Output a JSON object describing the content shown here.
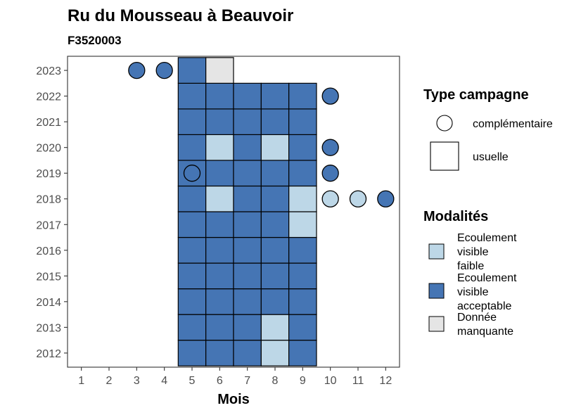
{
  "chart_data": {
    "type": "heatmap",
    "title": "Ru du Mousseau à Beauvoir",
    "subtitle": "F3520003",
    "xlabel": "Mois",
    "ylabel": "",
    "x_ticks": [
      1,
      2,
      3,
      4,
      5,
      6,
      7,
      8,
      9,
      10,
      11,
      12
    ],
    "y_ticks": [
      2012,
      2013,
      2014,
      2015,
      2016,
      2017,
      2018,
      2019,
      2020,
      2021,
      2022,
      2023
    ],
    "xlim": [
      0.5,
      12.5
    ],
    "ylim": [
      2011.45,
      2023.55
    ],
    "colors": {
      "faible": "#bdd7e7",
      "acceptable": "#4575b4",
      "manquante": "#e5e5e5"
    },
    "usuelle": [
      {
        "year": 2012,
        "month": 5,
        "modalite": "acceptable"
      },
      {
        "year": 2012,
        "month": 6,
        "modalite": "acceptable"
      },
      {
        "year": 2012,
        "month": 7,
        "modalite": "acceptable"
      },
      {
        "year": 2012,
        "month": 8,
        "modalite": "faible"
      },
      {
        "year": 2012,
        "month": 9,
        "modalite": "acceptable"
      },
      {
        "year": 2013,
        "month": 5,
        "modalite": "acceptable"
      },
      {
        "year": 2013,
        "month": 6,
        "modalite": "acceptable"
      },
      {
        "year": 2013,
        "month": 7,
        "modalite": "acceptable"
      },
      {
        "year": 2013,
        "month": 8,
        "modalite": "faible"
      },
      {
        "year": 2013,
        "month": 9,
        "modalite": "acceptable"
      },
      {
        "year": 2014,
        "month": 5,
        "modalite": "acceptable"
      },
      {
        "year": 2014,
        "month": 6,
        "modalite": "acceptable"
      },
      {
        "year": 2014,
        "month": 7,
        "modalite": "acceptable"
      },
      {
        "year": 2014,
        "month": 8,
        "modalite": "acceptable"
      },
      {
        "year": 2014,
        "month": 9,
        "modalite": "acceptable"
      },
      {
        "year": 2015,
        "month": 5,
        "modalite": "acceptable"
      },
      {
        "year": 2015,
        "month": 6,
        "modalite": "acceptable"
      },
      {
        "year": 2015,
        "month": 7,
        "modalite": "acceptable"
      },
      {
        "year": 2015,
        "month": 8,
        "modalite": "acceptable"
      },
      {
        "year": 2015,
        "month": 9,
        "modalite": "acceptable"
      },
      {
        "year": 2016,
        "month": 5,
        "modalite": "acceptable"
      },
      {
        "year": 2016,
        "month": 6,
        "modalite": "acceptable"
      },
      {
        "year": 2016,
        "month": 7,
        "modalite": "acceptable"
      },
      {
        "year": 2016,
        "month": 8,
        "modalite": "acceptable"
      },
      {
        "year": 2016,
        "month": 9,
        "modalite": "acceptable"
      },
      {
        "year": 2017,
        "month": 5,
        "modalite": "acceptable"
      },
      {
        "year": 2017,
        "month": 6,
        "modalite": "acceptable"
      },
      {
        "year": 2017,
        "month": 7,
        "modalite": "acceptable"
      },
      {
        "year": 2017,
        "month": 8,
        "modalite": "acceptable"
      },
      {
        "year": 2017,
        "month": 9,
        "modalite": "faible"
      },
      {
        "year": 2018,
        "month": 5,
        "modalite": "acceptable"
      },
      {
        "year": 2018,
        "month": 6,
        "modalite": "faible"
      },
      {
        "year": 2018,
        "month": 7,
        "modalite": "acceptable"
      },
      {
        "year": 2018,
        "month": 8,
        "modalite": "acceptable"
      },
      {
        "year": 2018,
        "month": 9,
        "modalite": "faible"
      },
      {
        "year": 2019,
        "month": 5,
        "modalite": "acceptable"
      },
      {
        "year": 2019,
        "month": 6,
        "modalite": "acceptable"
      },
      {
        "year": 2019,
        "month": 7,
        "modalite": "acceptable"
      },
      {
        "year": 2019,
        "month": 8,
        "modalite": "acceptable"
      },
      {
        "year": 2019,
        "month": 9,
        "modalite": "acceptable"
      },
      {
        "year": 2020,
        "month": 5,
        "modalite": "acceptable"
      },
      {
        "year": 2020,
        "month": 6,
        "modalite": "faible"
      },
      {
        "year": 2020,
        "month": 7,
        "modalite": "acceptable"
      },
      {
        "year": 2020,
        "month": 8,
        "modalite": "faible"
      },
      {
        "year": 2020,
        "month": 9,
        "modalite": "acceptable"
      },
      {
        "year": 2021,
        "month": 5,
        "modalite": "acceptable"
      },
      {
        "year": 2021,
        "month": 6,
        "modalite": "acceptable"
      },
      {
        "year": 2021,
        "month": 7,
        "modalite": "acceptable"
      },
      {
        "year": 2021,
        "month": 8,
        "modalite": "acceptable"
      },
      {
        "year": 2021,
        "month": 9,
        "modalite": "acceptable"
      },
      {
        "year": 2022,
        "month": 5,
        "modalite": "acceptable"
      },
      {
        "year": 2022,
        "month": 6,
        "modalite": "acceptable"
      },
      {
        "year": 2022,
        "month": 7,
        "modalite": "acceptable"
      },
      {
        "year": 2022,
        "month": 8,
        "modalite": "acceptable"
      },
      {
        "year": 2022,
        "month": 9,
        "modalite": "acceptable"
      },
      {
        "year": 2023,
        "month": 5,
        "modalite": "acceptable"
      },
      {
        "year": 2023,
        "month": 6,
        "modalite": "manquante"
      }
    ],
    "complementaire": [
      {
        "year": 2023,
        "month": 3,
        "modalite": "acceptable"
      },
      {
        "year": 2023,
        "month": 4,
        "modalite": "acceptable"
      },
      {
        "year": 2022,
        "month": 10,
        "modalite": "acceptable"
      },
      {
        "year": 2020,
        "month": 10,
        "modalite": "acceptable"
      },
      {
        "year": 2019,
        "month": 5,
        "modalite": "acceptable"
      },
      {
        "year": 2019,
        "month": 10,
        "modalite": "acceptable"
      },
      {
        "year": 2018,
        "month": 10,
        "modalite": "faible"
      },
      {
        "year": 2018,
        "month": 11,
        "modalite": "faible"
      },
      {
        "year": 2018,
        "month": 12,
        "modalite": "acceptable"
      }
    ],
    "legend": {
      "type_title": "Type campagne",
      "type_items": [
        {
          "label": "complémentaire",
          "shape": "circle"
        },
        {
          "label": "usuelle",
          "shape": "square"
        }
      ],
      "mod_title": "Modalités",
      "mod_items": [
        {
          "lines": [
            "Ecoulement",
            "visible",
            "faible"
          ],
          "color": "#bdd7e7"
        },
        {
          "lines": [
            "Ecoulement",
            "visible",
            "acceptable"
          ],
          "color": "#4575b4"
        },
        {
          "lines": [
            "Donnée",
            "manquante"
          ],
          "color": "#e5e5e5"
        }
      ]
    }
  }
}
